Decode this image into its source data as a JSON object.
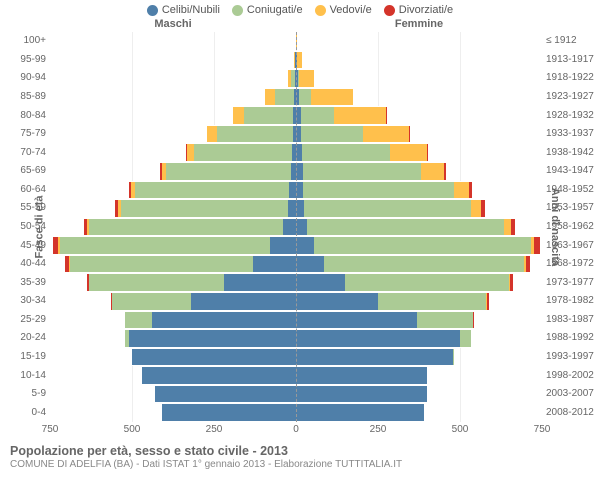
{
  "legend": [
    {
      "label": "Celibi/Nubili",
      "color": "#4f7fa9"
    },
    {
      "label": "Coniugati/e",
      "color": "#abcb95"
    },
    {
      "label": "Vedovi/e",
      "color": "#ffc04c"
    },
    {
      "label": "Divorziati/e",
      "color": "#d4342a"
    }
  ],
  "gender": {
    "m": "Maschi",
    "f": "Femmine"
  },
  "axis": {
    "left_title": "Fasce di età",
    "right_title": "Anni di nascita",
    "xmax": 750,
    "xticks": [
      750,
      500,
      250,
      0,
      250,
      500,
      750
    ]
  },
  "colors": {
    "grid": "#eeeeee",
    "center": "#999999",
    "background": "#ffffff"
  },
  "footer": {
    "title": "Popolazione per età, sesso e stato civile - 2013",
    "subtitle": "COMUNE DI ADELFIA (BA) - Dati ISTAT 1° gennaio 2013 - Elaborazione TUTTITALIA.IT"
  },
  "rows": [
    {
      "age": "100+",
      "birth": "≤ 1912",
      "m": [
        0,
        0,
        0,
        0
      ],
      "f": [
        0,
        0,
        3,
        0
      ]
    },
    {
      "age": "95-99",
      "birth": "1913-1917",
      "m": [
        2,
        0,
        5,
        0
      ],
      "f": [
        2,
        0,
        15,
        0
      ]
    },
    {
      "age": "90-94",
      "birth": "1918-1922",
      "m": [
        3,
        12,
        10,
        0
      ],
      "f": [
        5,
        5,
        45,
        0
      ]
    },
    {
      "age": "85-89",
      "birth": "1923-1927",
      "m": [
        5,
        60,
        30,
        0
      ],
      "f": [
        10,
        35,
        130,
        0
      ]
    },
    {
      "age": "80-84",
      "birth": "1928-1932",
      "m": [
        8,
        150,
        35,
        0
      ],
      "f": [
        15,
        100,
        160,
        2
      ]
    },
    {
      "age": "75-79",
      "birth": "1933-1937",
      "m": [
        10,
        230,
        30,
        2
      ],
      "f": [
        15,
        190,
        140,
        3
      ]
    },
    {
      "age": "70-74",
      "birth": "1938-1942",
      "m": [
        12,
        300,
        20,
        3
      ],
      "f": [
        18,
        270,
        110,
        5
      ]
    },
    {
      "age": "65-69",
      "birth": "1943-1947",
      "m": [
        15,
        380,
        15,
        5
      ],
      "f": [
        20,
        360,
        70,
        8
      ]
    },
    {
      "age": "60-64",
      "birth": "1948-1952",
      "m": [
        20,
        470,
        12,
        6
      ],
      "f": [
        22,
        460,
        45,
        10
      ]
    },
    {
      "age": "55-59",
      "birth": "1953-1957",
      "m": [
        25,
        510,
        8,
        8
      ],
      "f": [
        25,
        510,
        30,
        10
      ]
    },
    {
      "age": "50-54",
      "birth": "1958-1962",
      "m": [
        40,
        590,
        6,
        10
      ],
      "f": [
        35,
        600,
        20,
        12
      ]
    },
    {
      "age": "45-49",
      "birth": "1963-1967",
      "m": [
        80,
        640,
        5,
        15
      ],
      "f": [
        55,
        660,
        12,
        18
      ]
    },
    {
      "age": "40-44",
      "birth": "1968-1972",
      "m": [
        130,
        560,
        3,
        10
      ],
      "f": [
        85,
        610,
        6,
        12
      ]
    },
    {
      "age": "35-39",
      "birth": "1973-1977",
      "m": [
        220,
        410,
        2,
        6
      ],
      "f": [
        150,
        500,
        4,
        8
      ]
    },
    {
      "age": "30-34",
      "birth": "1978-1982",
      "m": [
        320,
        240,
        0,
        4
      ],
      "f": [
        250,
        330,
        2,
        5
      ]
    },
    {
      "age": "25-29",
      "birth": "1983-1987",
      "m": [
        440,
        80,
        0,
        2
      ],
      "f": [
        370,
        170,
        0,
        3
      ]
    },
    {
      "age": "20-24",
      "birth": "1988-1992",
      "m": [
        510,
        12,
        0,
        0
      ],
      "f": [
        500,
        35,
        0,
        0
      ]
    },
    {
      "age": "15-19",
      "birth": "1993-1997",
      "m": [
        500,
        0,
        0,
        0
      ],
      "f": [
        480,
        2,
        0,
        0
      ]
    },
    {
      "age": "10-14",
      "birth": "1998-2002",
      "m": [
        470,
        0,
        0,
        0
      ],
      "f": [
        400,
        0,
        0,
        0
      ]
    },
    {
      "age": "5-9",
      "birth": "2003-2007",
      "m": [
        430,
        0,
        0,
        0
      ],
      "f": [
        400,
        0,
        0,
        0
      ]
    },
    {
      "age": "0-4",
      "birth": "2008-2012",
      "m": [
        410,
        0,
        0,
        0
      ],
      "f": [
        390,
        0,
        0,
        0
      ]
    }
  ]
}
